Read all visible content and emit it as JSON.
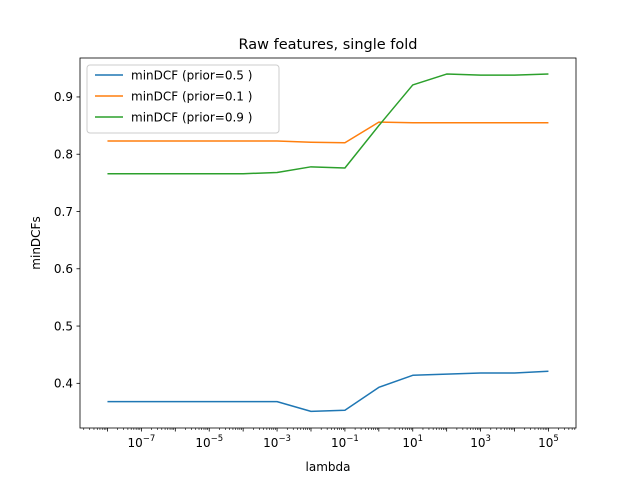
{
  "chart_data": {
    "type": "line",
    "title": "Raw features, single fold",
    "xlabel": "lambda",
    "ylabel": "minDCFs",
    "x_scale": "log",
    "x": [
      1e-08,
      1e-07,
      1e-06,
      1e-05,
      0.0001,
      0.001,
      0.01,
      0.1,
      1,
      10,
      100,
      1000,
      10000,
      100000
    ],
    "xlim": [
      1.55e-09,
      650000.0
    ],
    "ylim": [
      0.322,
      0.968
    ],
    "x_ticks": [
      {
        "value": 1e-07,
        "base": "10",
        "exp": "−7"
      },
      {
        "value": 1e-05,
        "base": "10",
        "exp": "−5"
      },
      {
        "value": 0.001,
        "base": "10",
        "exp": "−3"
      },
      {
        "value": 0.1,
        "base": "10",
        "exp": "−1"
      },
      {
        "value": 10,
        "base": "10",
        "exp": "1"
      },
      {
        "value": 1000,
        "base": "10",
        "exp": "3"
      },
      {
        "value": 100000,
        "base": "10",
        "exp": "5"
      }
    ],
    "y_ticks": [
      {
        "value": 0.4,
        "label": "0.4"
      },
      {
        "value": 0.5,
        "label": "0.5"
      },
      {
        "value": 0.6,
        "label": "0.6"
      },
      {
        "value": 0.7,
        "label": "0.7"
      },
      {
        "value": 0.8,
        "label": "0.8"
      },
      {
        "value": 0.9,
        "label": "0.9"
      }
    ],
    "grid": false,
    "legend_position": "top-left",
    "series": [
      {
        "name": "minDCF (prior=0.5 )",
        "color": "#1f77b4",
        "values": [
          0.368,
          0.368,
          0.368,
          0.368,
          0.368,
          0.368,
          0.351,
          0.353,
          0.393,
          0.414,
          0.416,
          0.418,
          0.418,
          0.421
        ]
      },
      {
        "name": "minDCF (prior=0.1 )",
        "color": "#ff7f0e",
        "values": [
          0.823,
          0.823,
          0.823,
          0.823,
          0.823,
          0.823,
          0.821,
          0.82,
          0.856,
          0.855,
          0.855,
          0.855,
          0.855,
          0.855
        ]
      },
      {
        "name": "minDCF (prior=0.9 )",
        "color": "#2ca02c",
        "values": [
          0.766,
          0.766,
          0.766,
          0.766,
          0.766,
          0.768,
          0.778,
          0.776,
          0.85,
          0.921,
          0.94,
          0.938,
          0.938,
          0.94
        ]
      }
    ]
  }
}
